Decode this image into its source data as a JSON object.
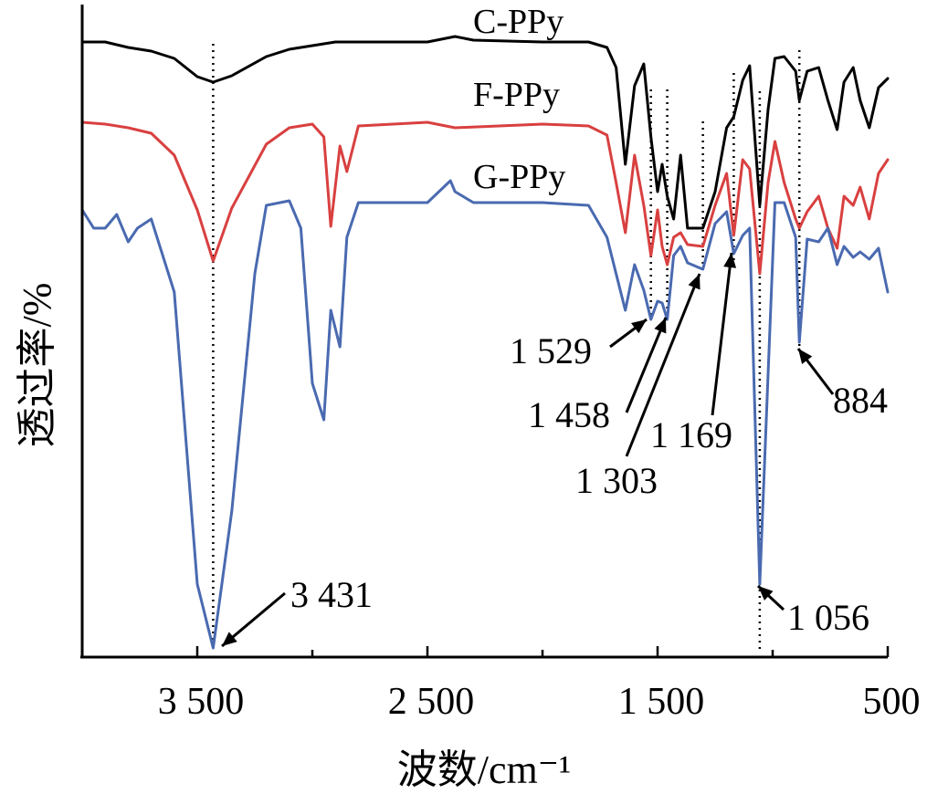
{
  "chart_data": {
    "type": "line",
    "title": "",
    "xlabel": "波数/cm⁻¹",
    "ylabel": "透过率/%",
    "xlim": [
      4000,
      500
    ],
    "x_reversed": true,
    "x_ticks": [
      {
        "value": 3500,
        "label": "3 500"
      },
      {
        "value": 2500,
        "label": "2 500"
      },
      {
        "value": 1500,
        "label": "1 500"
      },
      {
        "value": 500,
        "label": "500"
      }
    ],
    "y_ticks_shown": false,
    "grid": false,
    "series": [
      {
        "name": "C-PPy",
        "color": "#000000",
        "points": [
          [
            4000,
            46
          ],
          [
            3900,
            46
          ],
          [
            3800,
            52
          ],
          [
            3700,
            56
          ],
          [
            3600,
            64
          ],
          [
            3500,
            84
          ],
          [
            3431,
            90
          ],
          [
            3350,
            83
          ],
          [
            3200,
            62
          ],
          [
            3100,
            54
          ],
          [
            3000,
            50
          ],
          [
            2900,
            46
          ],
          [
            2700,
            46
          ],
          [
            2500,
            46
          ],
          [
            2380,
            40
          ],
          [
            2300,
            44
          ],
          [
            2000,
            46
          ],
          [
            1800,
            46
          ],
          [
            1720,
            52
          ],
          [
            1680,
            74
          ],
          [
            1640,
            180
          ],
          [
            1600,
            94
          ],
          [
            1560,
            70
          ],
          [
            1529,
            150
          ],
          [
            1500,
            210
          ],
          [
            1480,
            180
          ],
          [
            1458,
            215
          ],
          [
            1430,
            240
          ],
          [
            1400,
            170
          ],
          [
            1370,
            250
          ],
          [
            1303,
            250
          ],
          [
            1250,
            210
          ],
          [
            1200,
            140
          ],
          [
            1169,
            128
          ],
          [
            1130,
            88
          ],
          [
            1100,
            72
          ],
          [
            1056,
            225
          ],
          [
            1020,
            120
          ],
          [
            990,
            64
          ],
          [
            950,
            62
          ],
          [
            900,
            78
          ],
          [
            884,
            110
          ],
          [
            850,
            78
          ],
          [
            800,
            74
          ],
          [
            760,
            110
          ],
          [
            720,
            142
          ],
          [
            690,
            90
          ],
          [
            650,
            74
          ],
          [
            620,
            110
          ],
          [
            580,
            140
          ],
          [
            540,
            96
          ],
          [
            500,
            86
          ]
        ]
      },
      {
        "name": "F-PPy",
        "color": "#d94040",
        "points": [
          [
            4000,
            134
          ],
          [
            3900,
            136
          ],
          [
            3800,
            140
          ],
          [
            3700,
            146
          ],
          [
            3600,
            170
          ],
          [
            3500,
            230
          ],
          [
            3431,
            286
          ],
          [
            3350,
            228
          ],
          [
            3200,
            158
          ],
          [
            3100,
            140
          ],
          [
            3000,
            136
          ],
          [
            2950,
            150
          ],
          [
            2920,
            248
          ],
          [
            2880,
            160
          ],
          [
            2850,
            188
          ],
          [
            2800,
            138
          ],
          [
            2500,
            134
          ],
          [
            2380,
            140
          ],
          [
            2000,
            136
          ],
          [
            1800,
            138
          ],
          [
            1720,
            148
          ],
          [
            1680,
            200
          ],
          [
            1640,
            255
          ],
          [
            1600,
            170
          ],
          [
            1560,
            225
          ],
          [
            1529,
            280
          ],
          [
            1500,
            230
          ],
          [
            1480,
            270
          ],
          [
            1458,
            290
          ],
          [
            1430,
            260
          ],
          [
            1400,
            255
          ],
          [
            1370,
            268
          ],
          [
            1303,
            270
          ],
          [
            1250,
            225
          ],
          [
            1200,
            190
          ],
          [
            1169,
            258
          ],
          [
            1130,
            175
          ],
          [
            1100,
            185
          ],
          [
            1056,
            300
          ],
          [
            1020,
            200
          ],
          [
            990,
            155
          ],
          [
            950,
            200
          ],
          [
            900,
            240
          ],
          [
            884,
            250
          ],
          [
            850,
            232
          ],
          [
            800,
            215
          ],
          [
            760,
            250
          ],
          [
            720,
            272
          ],
          [
            690,
            215
          ],
          [
            650,
            225
          ],
          [
            620,
            205
          ],
          [
            580,
            240
          ],
          [
            540,
            190
          ],
          [
            500,
            175
          ]
        ]
      },
      {
        "name": "G-PPy",
        "color": "#4a6ab0",
        "points": [
          [
            4000,
            230
          ],
          [
            3950,
            250
          ],
          [
            3900,
            250
          ],
          [
            3850,
            235
          ],
          [
            3800,
            265
          ],
          [
            3760,
            250
          ],
          [
            3700,
            240
          ],
          [
            3600,
            320
          ],
          [
            3550,
            480
          ],
          [
            3500,
            640
          ],
          [
            3431,
            710
          ],
          [
            3350,
            560
          ],
          [
            3250,
            300
          ],
          [
            3200,
            225
          ],
          [
            3100,
            220
          ],
          [
            3050,
            250
          ],
          [
            3000,
            420
          ],
          [
            2950,
            460
          ],
          [
            2920,
            340
          ],
          [
            2880,
            380
          ],
          [
            2850,
            260
          ],
          [
            2800,
            222
          ],
          [
            2500,
            222
          ],
          [
            2400,
            198
          ],
          [
            2380,
            210
          ],
          [
            2300,
            222
          ],
          [
            2000,
            222
          ],
          [
            1800,
            225
          ],
          [
            1720,
            260
          ],
          [
            1680,
            300
          ],
          [
            1640,
            340
          ],
          [
            1600,
            290
          ],
          [
            1560,
            318
          ],
          [
            1529,
            350
          ],
          [
            1500,
            330
          ],
          [
            1480,
            332
          ],
          [
            1458,
            350
          ],
          [
            1430,
            280
          ],
          [
            1400,
            270
          ],
          [
            1370,
            288
          ],
          [
            1303,
            295
          ],
          [
            1250,
            245
          ],
          [
            1200,
            232
          ],
          [
            1169,
            278
          ],
          [
            1130,
            258
          ],
          [
            1100,
            250
          ],
          [
            1056,
            640
          ],
          [
            1020,
            410
          ],
          [
            990,
            222
          ],
          [
            950,
            222
          ],
          [
            900,
            260
          ],
          [
            884,
            375
          ],
          [
            850,
            262
          ],
          [
            800,
            265
          ],
          [
            760,
            250
          ],
          [
            720,
            290
          ],
          [
            690,
            270
          ],
          [
            650,
            282
          ],
          [
            620,
            276
          ],
          [
            580,
            284
          ],
          [
            540,
            272
          ],
          [
            500,
            320
          ]
        ]
      }
    ],
    "annotations": [
      {
        "label": "3 431",
        "x": 3431
      },
      {
        "label": "1 529",
        "x": 1529
      },
      {
        "label": "1 458",
        "x": 1458
      },
      {
        "label": "1 303",
        "x": 1303
      },
      {
        "label": "1 169",
        "x": 1169
      },
      {
        "label": "1 056",
        "x": 1056
      },
      {
        "label": "884",
        "x": 884
      }
    ],
    "guide_lines": [
      3431,
      1529,
      1458,
      1303,
      1169,
      1056,
      884
    ]
  }
}
